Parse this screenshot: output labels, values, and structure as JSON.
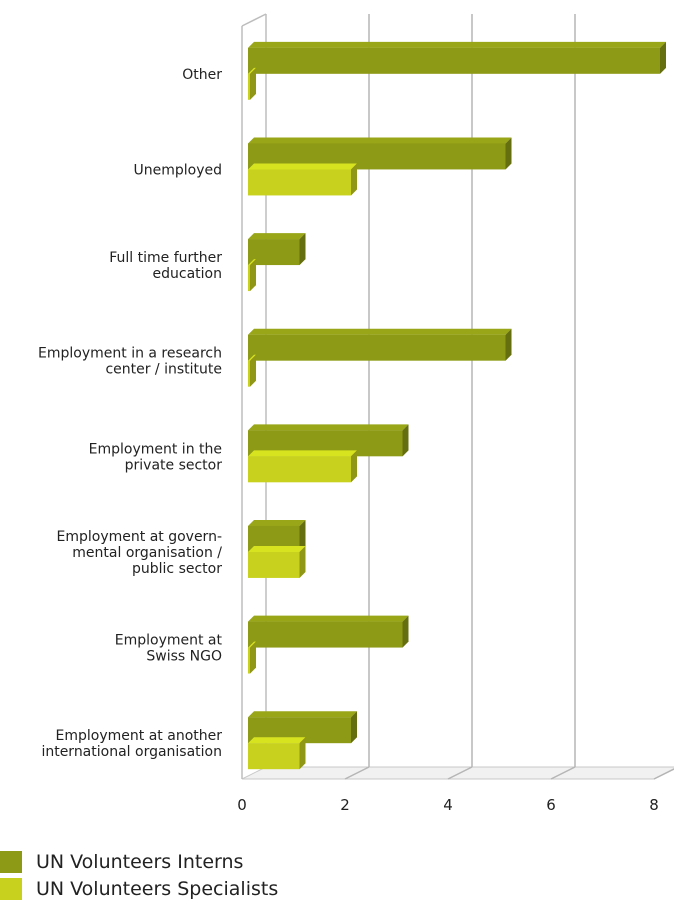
{
  "chart_data": {
    "type": "bar",
    "orientation": "horizontal",
    "categories": [
      [
        "Other"
      ],
      [
        "Unemployed"
      ],
      [
        "Full time further",
        "education"
      ],
      [
        "Employment in a research",
        "center / institute"
      ],
      [
        "Employment in the",
        "private sector"
      ],
      [
        "Employment at govern-",
        "mental organisation /",
        "public sector"
      ],
      [
        "Employment at",
        "Swiss NGO"
      ],
      [
        "Employment at another",
        "international organisation"
      ]
    ],
    "series": [
      {
        "name": "UN Volunteers Interns",
        "color": "#8d9a16",
        "values": [
          8,
          5,
          1,
          5,
          3,
          1,
          3,
          2
        ]
      },
      {
        "name": "UN Volunteers Specialists",
        "color": "#c8d21e",
        "values": [
          0,
          2,
          0,
          0,
          2,
          1,
          0,
          1
        ]
      }
    ],
    "xticks": [
      "0",
      "2",
      "4",
      "6",
      "8"
    ],
    "xlim": [
      0,
      8
    ],
    "grid": true,
    "legend": "bottom-left"
  }
}
